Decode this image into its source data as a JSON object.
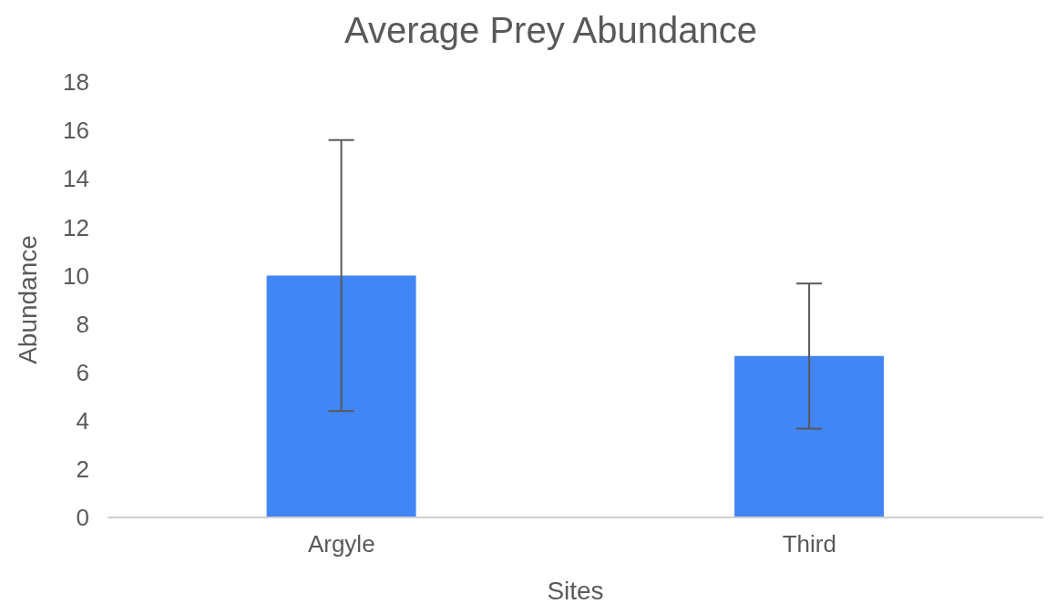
{
  "chart_data": {
    "type": "bar",
    "title": "Average Prey Abundance",
    "xlabel": "Sites",
    "ylabel": "Abundance",
    "categories": [
      "Argyle",
      "Third"
    ],
    "values": [
      10,
      6.67
    ],
    "errors": [
      5.6,
      3.0
    ],
    "color": "#4285f4",
    "ylim": [
      0,
      18
    ],
    "yticks": [
      0,
      2,
      4,
      6,
      8,
      10,
      12,
      14,
      16,
      18
    ],
    "grid": false,
    "legend": false
  }
}
